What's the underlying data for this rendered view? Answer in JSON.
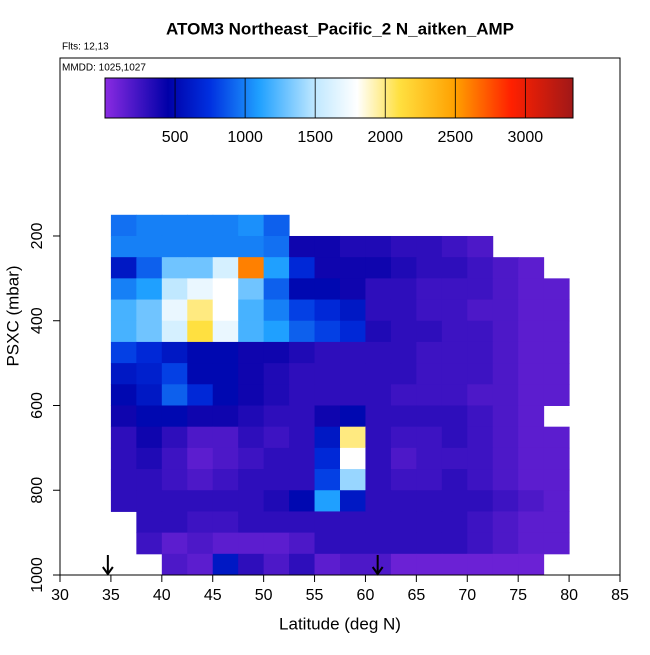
{
  "chart_data": {
    "type": "heatmap",
    "title": "ATOM3 Northeast_Pacific_2 N_aitken_AMP",
    "annotations": [
      "Flts: 12,13",
      "MMDD: 1025,1027"
    ],
    "xlabel": "Latitude (deg N)",
    "ylabel": "PSXC (mbar)",
    "xlim": [
      30,
      85
    ],
    "xticks": [
      30,
      35,
      40,
      45,
      50,
      55,
      60,
      65,
      70,
      75,
      80,
      85
    ],
    "ylim": [
      1000,
      -220
    ],
    "yticks": [
      200,
      400,
      600,
      800,
      1000
    ],
    "zlim": [
      0,
      3340
    ],
    "zticks": [
      500,
      1000,
      1500,
      2000,
      2500,
      3000
    ],
    "colorscale": [
      [
        0,
        "#8a2be2"
      ],
      [
        450,
        "#0000a8"
      ],
      [
        750,
        "#0030e0"
      ],
      [
        1100,
        "#1fa0ff"
      ],
      [
        1500,
        "#c0e8ff"
      ],
      [
        1800,
        "#ffffff"
      ],
      [
        2100,
        "#ffe040"
      ],
      [
        2500,
        "#ffa000"
      ],
      [
        2900,
        "#ff2000"
      ],
      [
        3340,
        "#a01818"
      ]
    ],
    "markers_x": [
      34.7,
      61.2
    ],
    "x_edges": [
      35,
      37.5,
      40,
      42.5,
      45,
      47.5,
      50,
      52.5,
      55,
      57.5,
      60,
      62.5,
      65,
      67.5,
      70,
      72.5,
      75,
      77.5,
      80
    ],
    "y_edges": [
      150,
      200,
      250,
      300,
      350,
      400,
      450,
      500,
      550,
      600,
      650,
      700,
      750,
      800,
      850,
      900,
      950,
      1000
    ],
    "z": [
      [
        950,
        1000,
        1000,
        1000,
        1000,
        1050,
        900,
        null,
        null,
        null,
        null,
        null,
        null,
        null,
        null,
        null,
        null,
        null
      ],
      [
        1000,
        1000,
        1000,
        1000,
        1000,
        1000,
        950,
        400,
        400,
        350,
        350,
        300,
        300,
        250,
        200,
        null,
        null,
        null
      ],
      [
        600,
        900,
        1300,
        1300,
        1600,
        2600,
        1100,
        700,
        400,
        400,
        400,
        350,
        300,
        300,
        250,
        200,
        150,
        null
      ],
      [
        1000,
        1100,
        1500,
        1700,
        1800,
        1300,
        900,
        500,
        500,
        400,
        300,
        300,
        250,
        250,
        250,
        200,
        150,
        150
      ],
      [
        1200,
        1300,
        1700,
        2000,
        1800,
        1200,
        1000,
        800,
        700,
        600,
        300,
        300,
        250,
        250,
        200,
        200,
        150,
        150
      ],
      [
        1200,
        1300,
        1600,
        2100,
        1700,
        1200,
        1100,
        900,
        800,
        700,
        350,
        300,
        300,
        250,
        250,
        200,
        150,
        150
      ],
      [
        800,
        700,
        600,
        500,
        500,
        400,
        400,
        350,
        300,
        300,
        300,
        300,
        250,
        250,
        250,
        200,
        150,
        150
      ],
      [
        600,
        650,
        800,
        500,
        500,
        400,
        350,
        300,
        300,
        300,
        300,
        300,
        250,
        250,
        250,
        200,
        150,
        150
      ],
      [
        500,
        600,
        900,
        700,
        500,
        400,
        350,
        300,
        300,
        300,
        300,
        250,
        250,
        250,
        200,
        200,
        150,
        150
      ],
      [
        400,
        500,
        500,
        400,
        400,
        350,
        300,
        300,
        400,
        500,
        300,
        300,
        300,
        300,
        250,
        200,
        150,
        null
      ],
      [
        300,
        400,
        300,
        200,
        200,
        300,
        250,
        300,
        600,
        2000,
        300,
        250,
        250,
        300,
        250,
        200,
        150,
        150
      ],
      [
        300,
        350,
        250,
        150,
        200,
        250,
        300,
        300,
        700,
        1800,
        300,
        200,
        250,
        250,
        250,
        200,
        150,
        150
      ],
      [
        300,
        300,
        250,
        200,
        250,
        300,
        300,
        300,
        800,
        1400,
        300,
        250,
        250,
        300,
        250,
        200,
        150,
        150
      ],
      [
        300,
        300,
        300,
        300,
        300,
        300,
        350,
        500,
        1100,
        600,
        300,
        300,
        300,
        300,
        300,
        250,
        200,
        150
      ],
      [
        null,
        300,
        300,
        250,
        250,
        300,
        300,
        300,
        300,
        300,
        300,
        300,
        300,
        300,
        250,
        200,
        150,
        150
      ],
      [
        null,
        250,
        150,
        200,
        150,
        150,
        150,
        200,
        300,
        300,
        300,
        300,
        300,
        300,
        250,
        200,
        150,
        150
      ],
      [
        null,
        null,
        200,
        150,
        600,
        300,
        200,
        300,
        150,
        200,
        200,
        100,
        100,
        100,
        100,
        100,
        100,
        null
      ]
    ]
  }
}
